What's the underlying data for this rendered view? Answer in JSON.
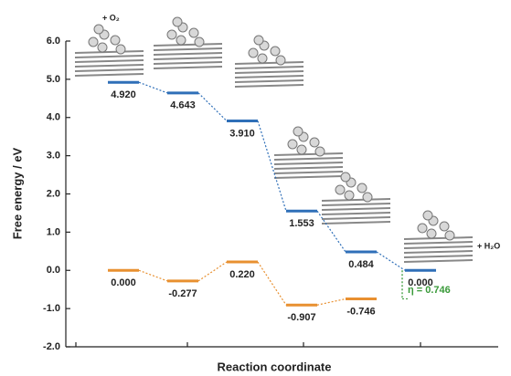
{
  "chart_data": {
    "type": "step",
    "y_label": "Free energy / eV",
    "x_label": "Reaction coordinate",
    "ylim": [
      -2,
      6
    ],
    "yticks": [
      {
        "value": -2,
        "label": "-2.0"
      },
      {
        "value": -1,
        "label": "-1.0"
      },
      {
        "value": 0,
        "label": "0.0"
      },
      {
        "value": 1,
        "label": "1.0"
      },
      {
        "value": 2,
        "label": "2.0"
      },
      {
        "value": 3,
        "label": "3.0"
      },
      {
        "value": 4,
        "label": "4.0"
      },
      {
        "value": 5,
        "label": "5.0"
      },
      {
        "value": 6,
        "label": "6.0"
      }
    ],
    "series": [
      {
        "color": "#2f6fb8",
        "values": [
          4.92,
          4.643,
          3.91,
          1.553,
          0.484,
          0
        ],
        "value_labels": [
          "4.920",
          "4.643",
          "3.910",
          "1.553",
          "0.484",
          "0.000"
        ]
      },
      {
        "color": "#e89030",
        "values": [
          0,
          -0.277,
          0.22,
          -0.907,
          -0.746
        ],
        "value_labels": [
          "0.000",
          "-0.277",
          "0.220",
          "-0.907",
          "-0.746"
        ]
      }
    ],
    "annotations": [
      "+ O₂",
      "+ H₂O"
    ],
    "overpotential": {
      "value": 0.746,
      "label": "η = 0.746",
      "color": "#3a9a3a"
    }
  }
}
